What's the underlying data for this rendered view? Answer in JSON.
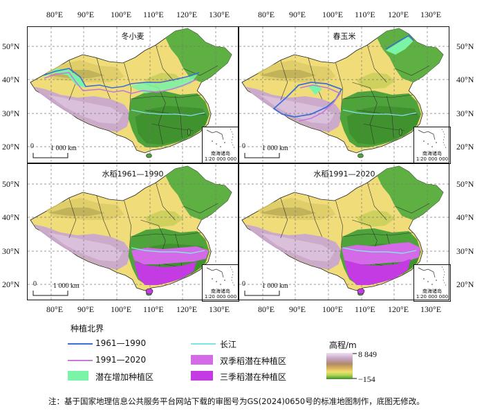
{
  "longitude_ticks": [
    "80°E",
    "90°E",
    "100°E",
    "110°E",
    "120°E",
    "130°E"
  ],
  "latitude_ticks": [
    "50°N",
    "40°N",
    "30°N",
    "20°N"
  ],
  "panels": [
    {
      "title": "冬小麦"
    },
    {
      "title": "春玉米"
    },
    {
      "title": "水稻1961—1990"
    },
    {
      "title": "水稻1991—2020"
    }
  ],
  "scale_bar": {
    "zero": "0",
    "distance": "1 000 km"
  },
  "inset": {
    "name": "南海诸岛",
    "scale": "1∶20 000 000"
  },
  "legend": {
    "group_title": "种植北界",
    "items": [
      {
        "label": "1961—1990",
        "color": "#3a6fd8"
      },
      {
        "label": "1991—2020",
        "color": "#c47ad6"
      },
      {
        "label": "潜在增加种植区",
        "color": "#7af5a8"
      },
      {
        "label": "长江",
        "color": "#7fe8e0"
      },
      {
        "label": "双季稻潜在种植区",
        "color": "#d56ae8"
      },
      {
        "label": "三季稻潜在种植区",
        "color": "#c43be3"
      }
    ],
    "elevation": {
      "title": "高程/m",
      "max": "8 849",
      "min": "−154"
    }
  },
  "note": "注：基于国家地理信息公共服务平台网站下载的审图号为GS(2024)0650号的标准地图制作，底图无修改。"
}
